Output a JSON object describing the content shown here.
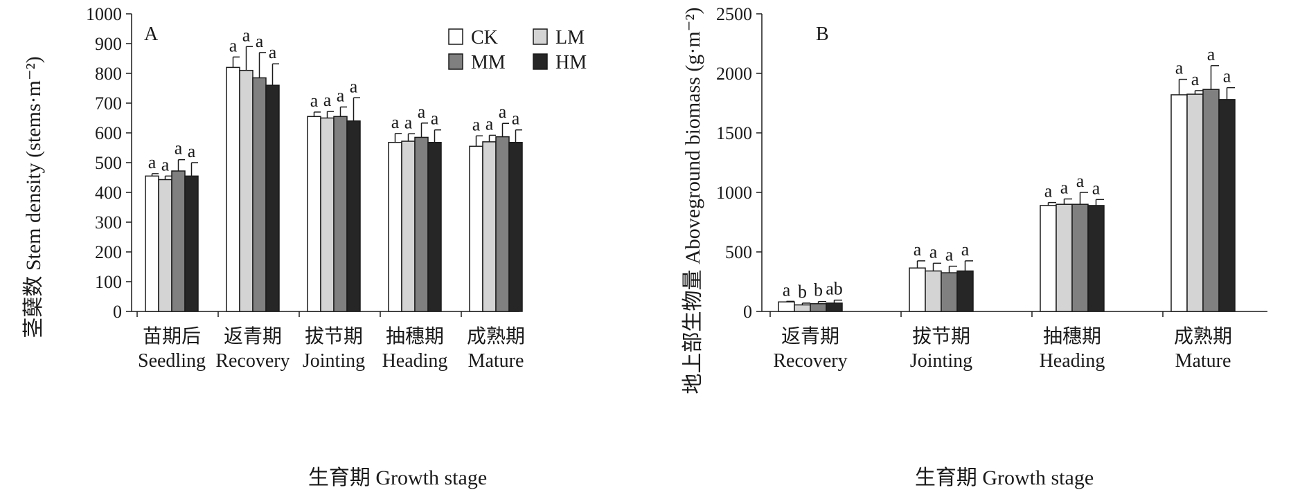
{
  "chart_data": [
    {
      "type": "bar",
      "panel_label": "A",
      "title": "",
      "ylabel": "茎蘖数 Stem density (stems·m⁻²)",
      "xlabel": "生育期 Growth stage",
      "ylim": [
        0,
        1000
      ],
      "yticks": [
        0,
        100,
        200,
        300,
        400,
        500,
        600,
        700,
        800,
        900,
        1000
      ],
      "categories": [
        {
          "cn": "苗期后",
          "en": "Seedling"
        },
        {
          "cn": "返青期",
          "en": "Recovery"
        },
        {
          "cn": "拔节期",
          "en": "Jointing"
        },
        {
          "cn": "抽穗期",
          "en": "Heading"
        },
        {
          "cn": "成熟期",
          "en": "Mature"
        }
      ],
      "legend_placement": "top-right",
      "series": [
        {
          "name": "CK",
          "color": "#ffffff",
          "values": [
            455,
            820,
            655,
            568,
            555
          ],
          "errors": [
            8,
            35,
            15,
            30,
            35
          ],
          "labels": [
            "a",
            "a",
            "a",
            "a",
            "a"
          ]
        },
        {
          "name": "LM",
          "color": "#d4d4d4",
          "values": [
            443,
            810,
            650,
            572,
            570
          ],
          "errors": [
            12,
            80,
            22,
            25,
            22
          ],
          "labels": [
            "a",
            "a",
            "a",
            "a",
            "a"
          ]
        },
        {
          "name": "MM",
          "color": "#808080",
          "values": [
            472,
            785,
            655,
            585,
            587
          ],
          "errors": [
            38,
            85,
            32,
            48,
            45
          ],
          "labels": [
            "a",
            "a",
            "a",
            "a",
            "a"
          ]
        },
        {
          "name": "HM",
          "color": "#262626",
          "values": [
            455,
            760,
            640,
            568,
            568
          ],
          "errors": [
            45,
            72,
            78,
            42,
            42
          ],
          "labels": [
            "a",
            "a",
            "a",
            "a",
            "a"
          ]
        }
      ]
    },
    {
      "type": "bar",
      "panel_label": "B",
      "title": "",
      "ylabel": "地上部生物量 Aboveground biomass (g·m⁻²)",
      "xlabel": "生育期 Growth stage",
      "ylim": [
        0,
        2500
      ],
      "yticks": [
        0,
        500,
        1000,
        1500,
        2000,
        2500
      ],
      "categories": [
        {
          "cn": "返青期",
          "en": "Recovery"
        },
        {
          "cn": "拔节期",
          "en": "Jointing"
        },
        {
          "cn": "抽穗期",
          "en": "Heading"
        },
        {
          "cn": "成熟期",
          "en": "Mature"
        }
      ],
      "series": [
        {
          "name": "CK",
          "color": "#ffffff",
          "values": [
            80,
            365,
            890,
            1820
          ],
          "errors": [
            5,
            60,
            25,
            130
          ],
          "labels": [
            "a",
            "a",
            "a",
            "a"
          ]
        },
        {
          "name": "LM",
          "color": "#d4d4d4",
          "values": [
            55,
            340,
            900,
            1825
          ],
          "errors": [
            15,
            65,
            45,
            30
          ],
          "labels": [
            "b",
            "a",
            "a",
            "a"
          ]
        },
        {
          "name": "MM",
          "color": "#808080",
          "values": [
            65,
            325,
            900,
            1865
          ],
          "errors": [
            18,
            55,
            100,
            200
          ],
          "labels": [
            "b",
            "a",
            "a",
            "a"
          ]
        },
        {
          "name": "HM",
          "color": "#262626",
          "values": [
            70,
            340,
            890,
            1780
          ],
          "errors": [
            25,
            85,
            50,
            100
          ],
          "labels": [
            "ab",
            "a",
            "a",
            "a"
          ]
        }
      ]
    }
  ]
}
